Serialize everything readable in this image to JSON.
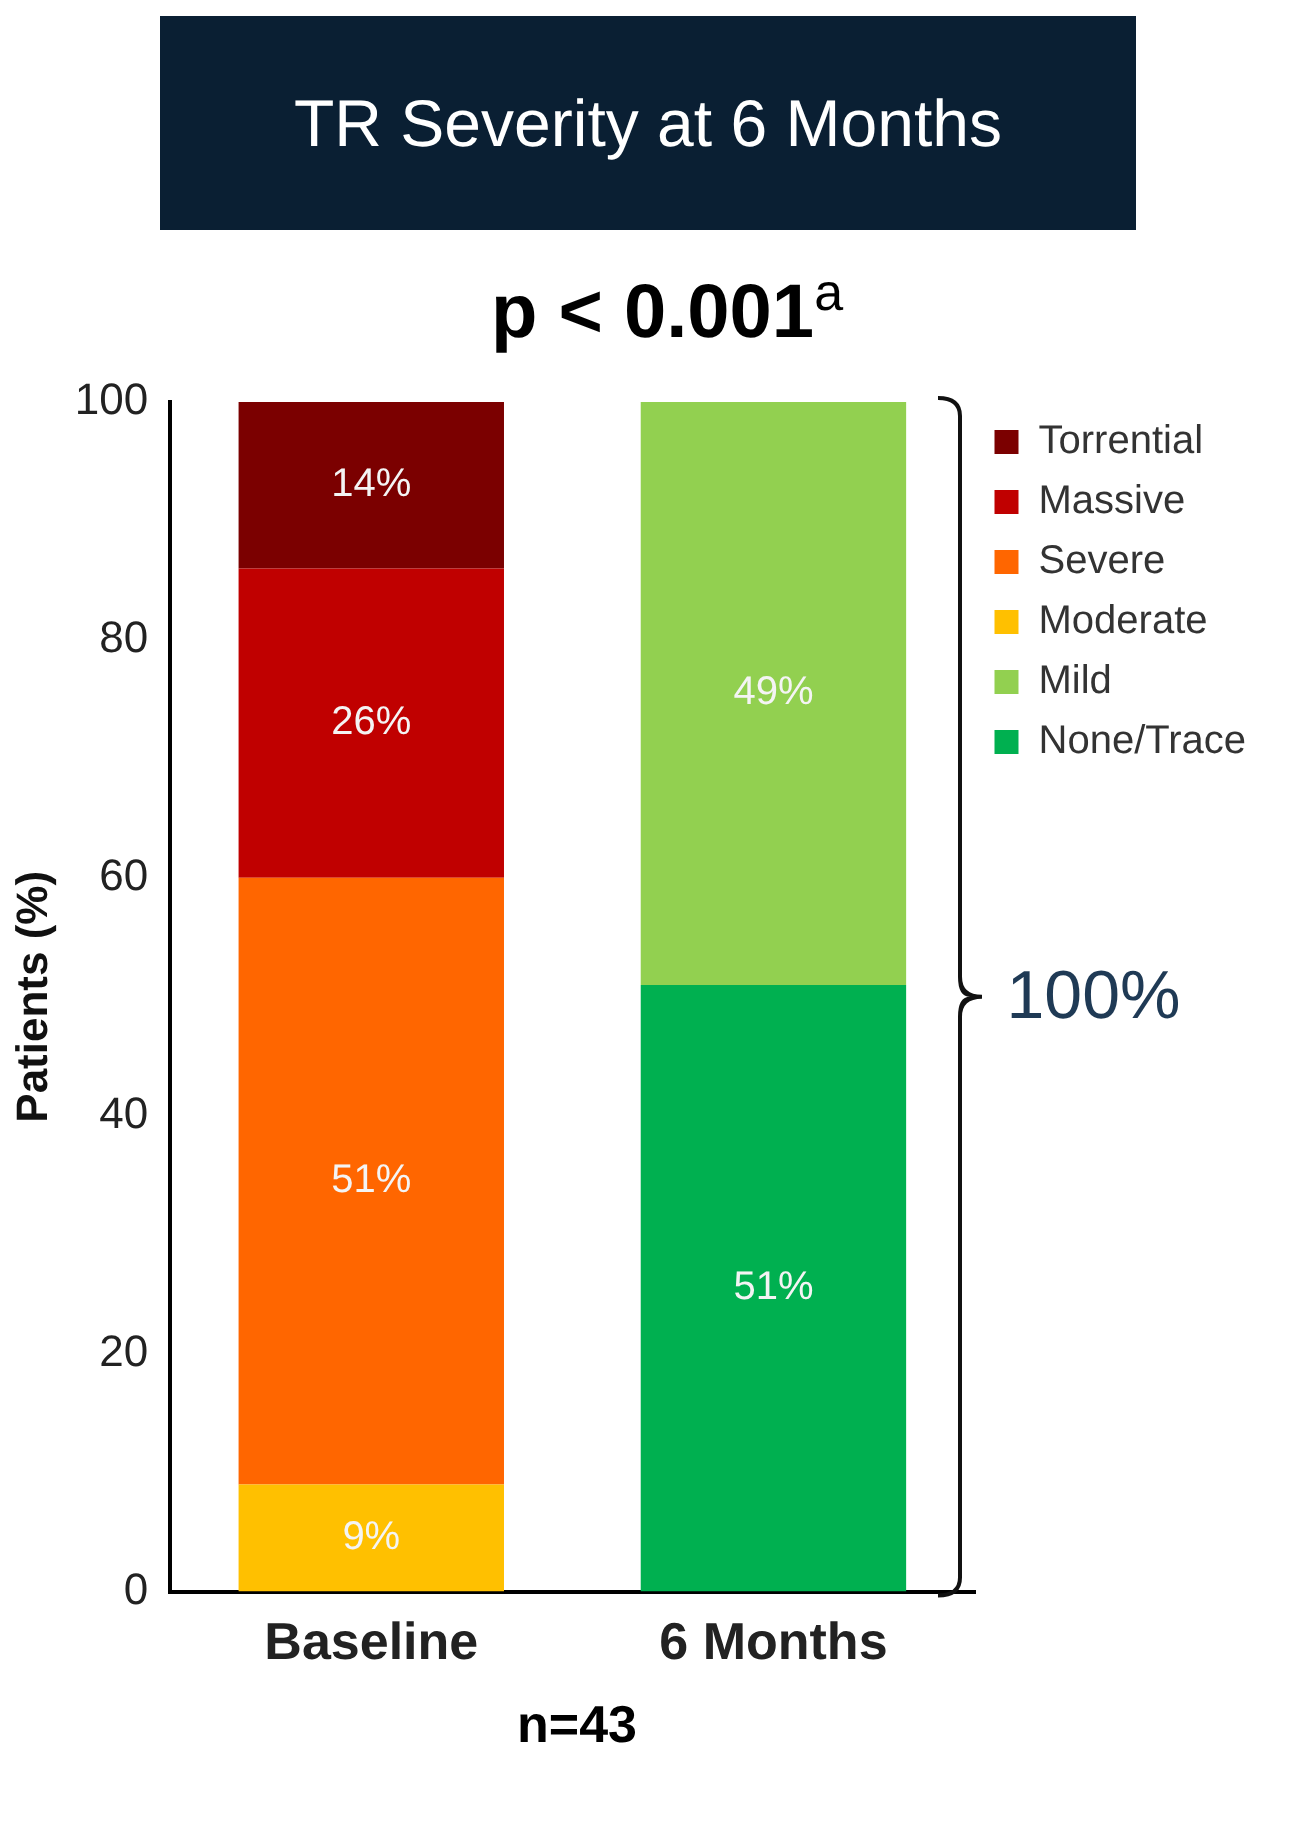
{
  "chart_data": {
    "type": "bar",
    "title": "TR Severity at 6 Months",
    "subtitle": "p < 0.001$^{a}$",
    "ylabel": "Patients (%)",
    "categories": [
      "Baseline",
      "6 Months"
    ],
    "stacked": true,
    "ylim": [
      0,
      100
    ],
    "yticks": [
      0,
      20,
      40,
      60,
      80,
      100
    ],
    "grid": false,
    "legend": "top right",
    "annotations": [
      "100%",
      "n=43"
    ],
    "series": [
      {
        "name": "None/Trace",
        "color": "#00b050",
        "values": [
          0,
          51
        ],
        "value_labels": [
          null,
          "51%"
        ]
      },
      {
        "name": "Mild",
        "color": "#92d050",
        "values": [
          0,
          49
        ],
        "value_labels": [
          null,
          "49%"
        ]
      },
      {
        "name": "Moderate",
        "color": "#ffc000",
        "values": [
          9,
          0
        ],
        "value_labels": [
          "9%",
          null
        ]
      },
      {
        "name": "Severe",
        "color": "#ff6600",
        "values": [
          51,
          0
        ],
        "value_labels": [
          "51%",
          null
        ]
      },
      {
        "name": "Massive",
        "color": "#c00000",
        "values": [
          26,
          0
        ],
        "value_labels": [
          "26%",
          null
        ]
      },
      {
        "name": "Torrential",
        "color": "#7b0000",
        "values": [
          14,
          0
        ],
        "value_labels": [
          "14%",
          null
        ]
      }
    ]
  }
}
